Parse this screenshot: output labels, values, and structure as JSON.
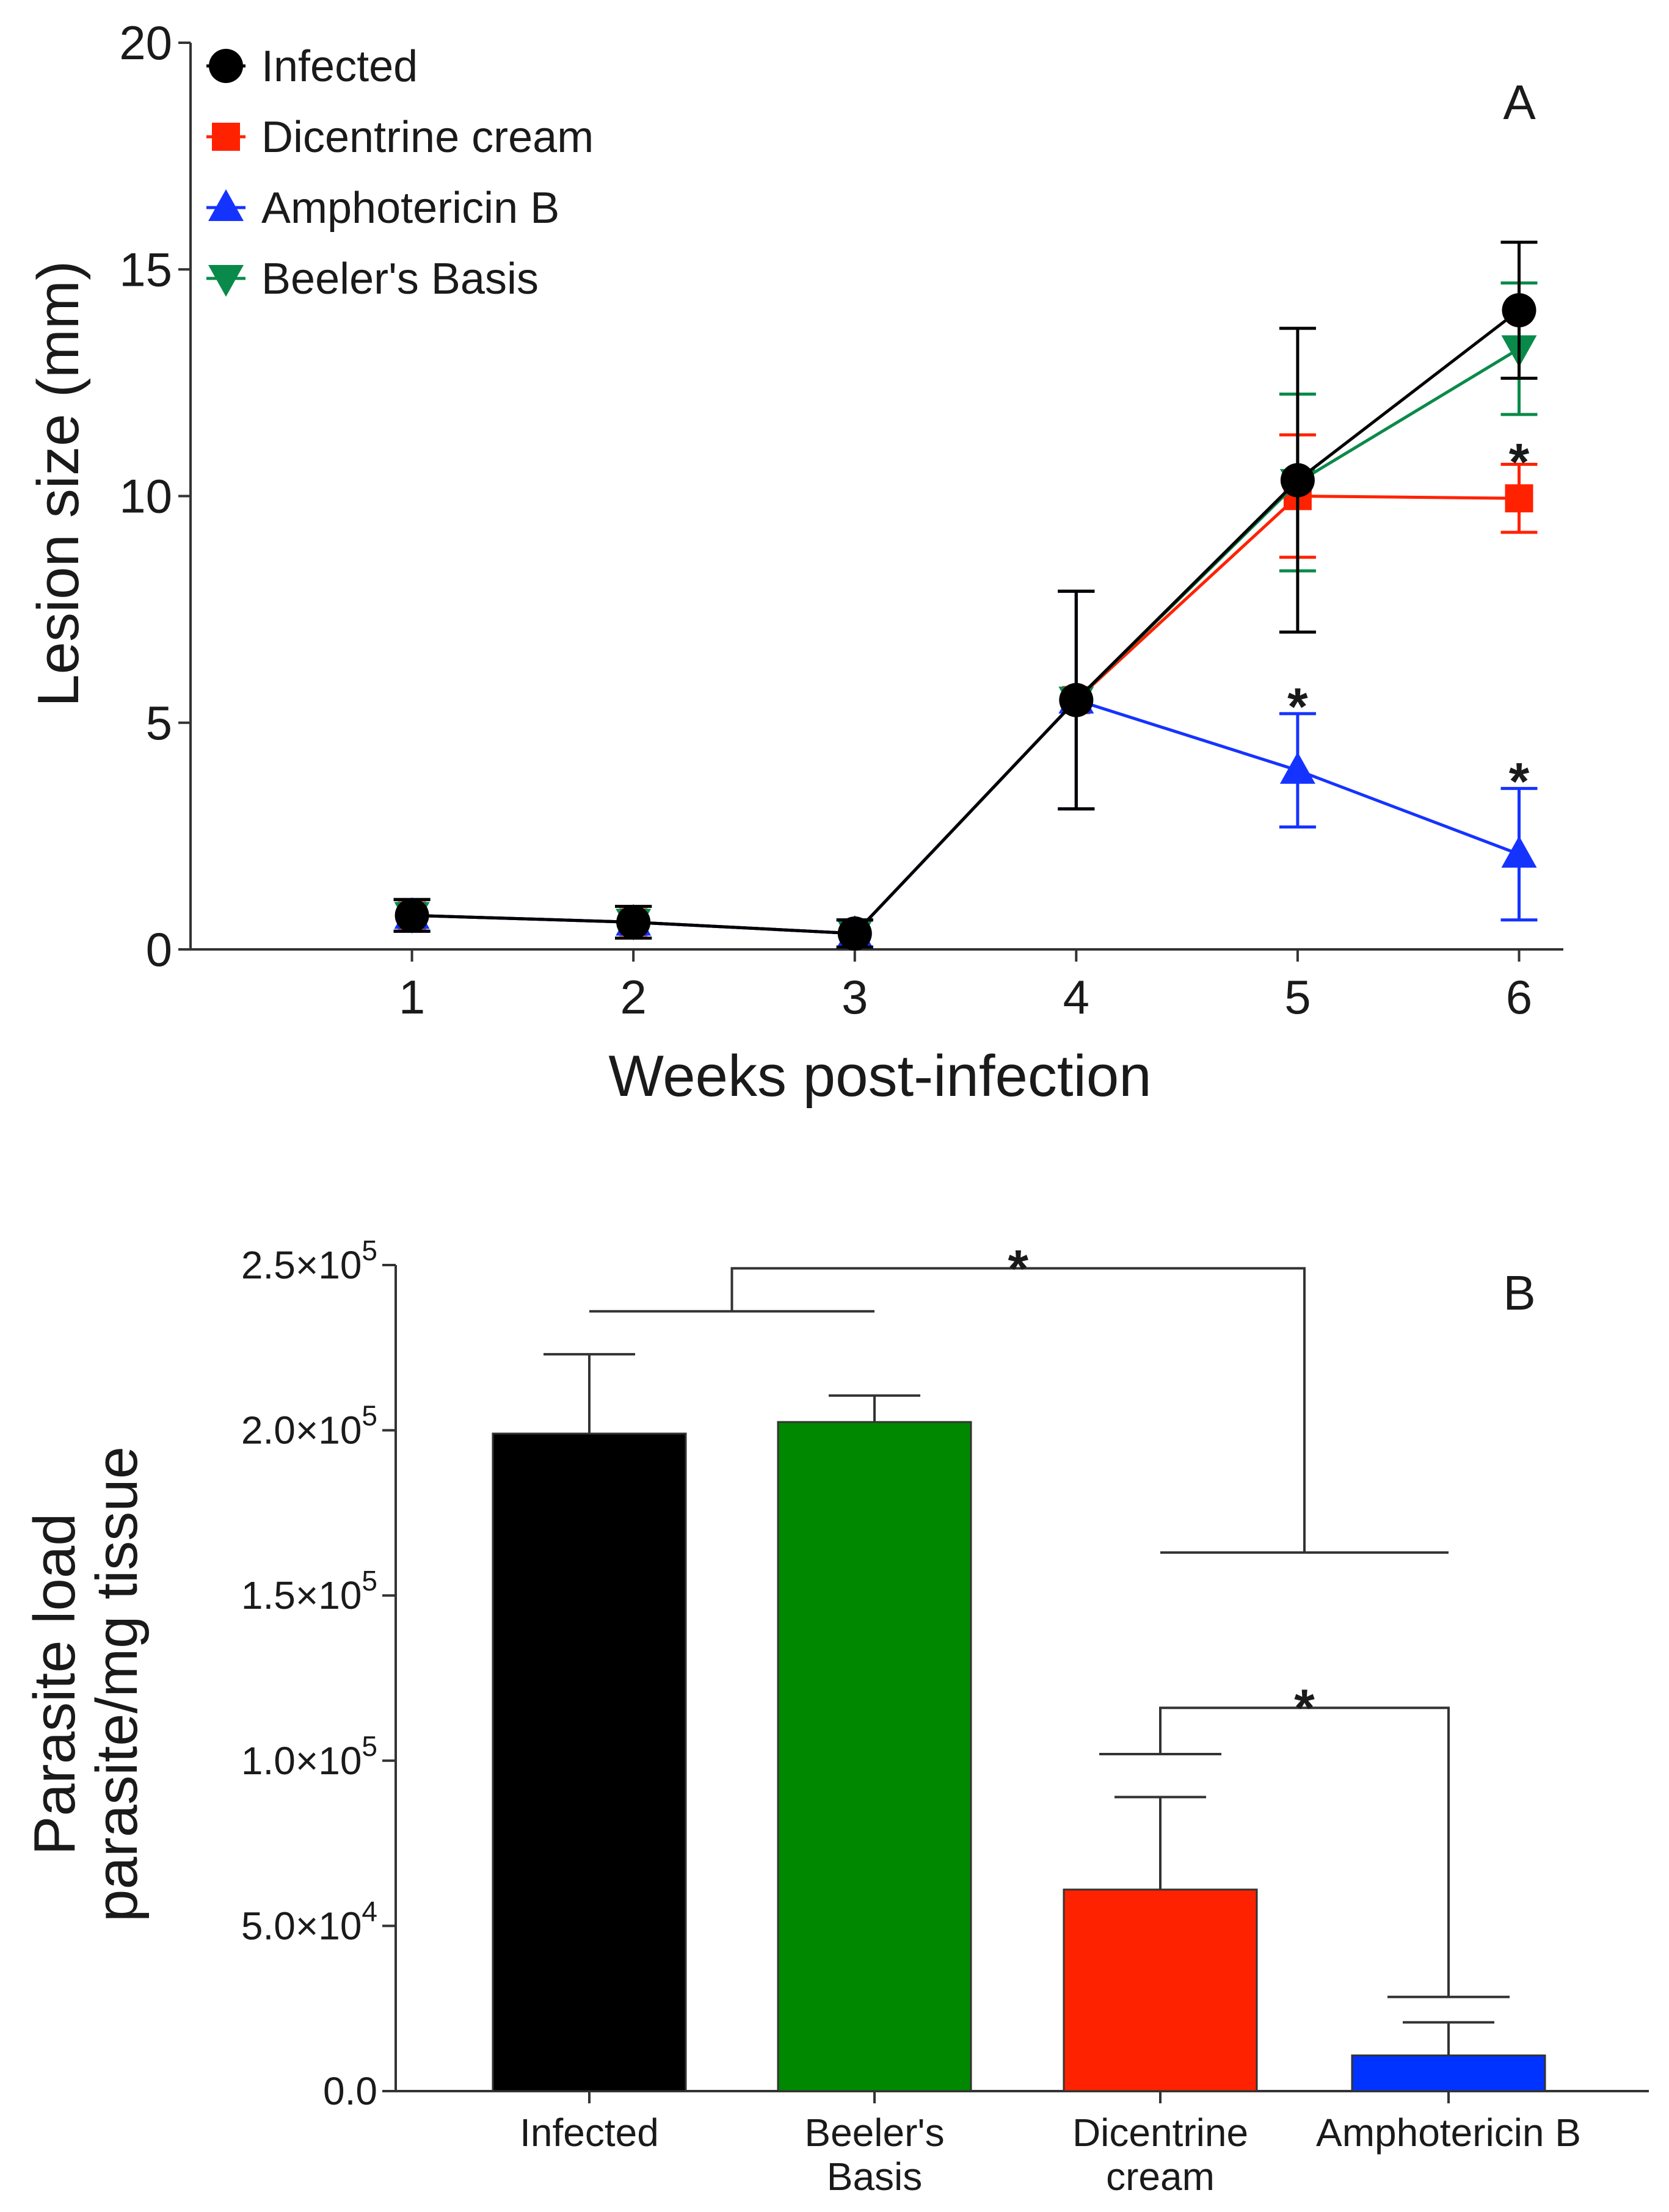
{
  "chart_data": [
    {
      "id": "A",
      "type": "line",
      "panel_label": "A",
      "xlabel": "Weeks post-infection",
      "ylabel": "Lesion size (mm)",
      "x": [
        1,
        2,
        3,
        4,
        5,
        6
      ],
      "xlim": [
        0,
        6.2
      ],
      "ylim": [
        0,
        20
      ],
      "yticks": [
        0,
        5,
        10,
        15,
        20
      ],
      "legend_position": "top-left",
      "series": [
        {
          "name": "Dicentrine cream",
          "color": "#ff2200",
          "marker": "square",
          "values": [
            0.75,
            0.6,
            0.35,
            5.5,
            10.0,
            9.95
          ],
          "errors": [
            0.35,
            0.35,
            0.3,
            2.4,
            1.35,
            0.75
          ]
        },
        {
          "name": "Beeler's Basis",
          "color": "#0a8a4a",
          "marker": "triangle-down",
          "values": [
            0.75,
            0.6,
            0.35,
            5.5,
            10.3,
            13.25
          ],
          "errors": [
            0.35,
            0.35,
            0.3,
            2.4,
            1.95,
            1.45
          ]
        },
        {
          "name": "Amphotericin B",
          "color": "#1533ff",
          "marker": "triangle-up",
          "values": [
            0.75,
            0.6,
            0.35,
            5.5,
            3.95,
            2.1
          ],
          "errors": [
            0.35,
            0.35,
            0.3,
            2.4,
            1.25,
            1.45
          ]
        },
        {
          "name": "Infected",
          "color": "#000000",
          "marker": "circle",
          "values": [
            0.75,
            0.6,
            0.35,
            5.5,
            10.35,
            14.1
          ],
          "errors": [
            0.35,
            0.35,
            0.3,
            2.4,
            3.35,
            1.5
          ]
        }
      ],
      "legend_order": [
        "Infected",
        "Dicentrine cream",
        "Amphotericin B",
        "Beeler's Basis"
      ],
      "annotations": [
        {
          "text": "*",
          "x": 5,
          "y": 5.6
        },
        {
          "text": "*",
          "x": 6,
          "y": 3.95
        },
        {
          "text": "*",
          "x": 6,
          "y": 11.0
        }
      ]
    },
    {
      "id": "B",
      "type": "bar",
      "panel_label": "B",
      "ylabel_lines": [
        "Parasite load",
        "parasite/mg tissue"
      ],
      "categories": [
        {
          "lines": [
            "Infected"
          ]
        },
        {
          "lines": [
            "Beeler's",
            "Basis"
          ]
        },
        {
          "lines": [
            "Dicentrine",
            "cream"
          ]
        },
        {
          "lines": [
            "Amphotericin B"
          ]
        }
      ],
      "values": [
        199000,
        202500,
        61000,
        10800
      ],
      "errors": [
        24000,
        8000,
        28000,
        10000
      ],
      "colors": [
        "#000000",
        "#008800",
        "#ff2200",
        "#0033ff"
      ],
      "ylim": [
        0,
        250000
      ],
      "yticks": [
        {
          "value": 0,
          "mantissa": "0.0",
          "exponent": ""
        },
        {
          "value": 50000,
          "mantissa": "5.0×10",
          "exponent": "4"
        },
        {
          "value": 100000,
          "mantissa": "1.0×10",
          "exponent": "5"
        },
        {
          "value": 150000,
          "mantissa": "1.5×10",
          "exponent": "5"
        },
        {
          "value": 200000,
          "mantissa": "2.0×10",
          "exponent": "5"
        },
        {
          "value": 250000,
          "mantissa": "2.5×10",
          "exponent": "5"
        }
      ],
      "significance": [
        {
          "text": "*",
          "group1": [
            0,
            1
          ],
          "group2": [
            2,
            3
          ],
          "level1": 236000,
          "level2": 163000,
          "top": 249000
        },
        {
          "text": "*",
          "group1": [
            2
          ],
          "group2": [
            3
          ],
          "level1": 102000,
          "level2": 28500,
          "top": 116000
        }
      ]
    }
  ]
}
